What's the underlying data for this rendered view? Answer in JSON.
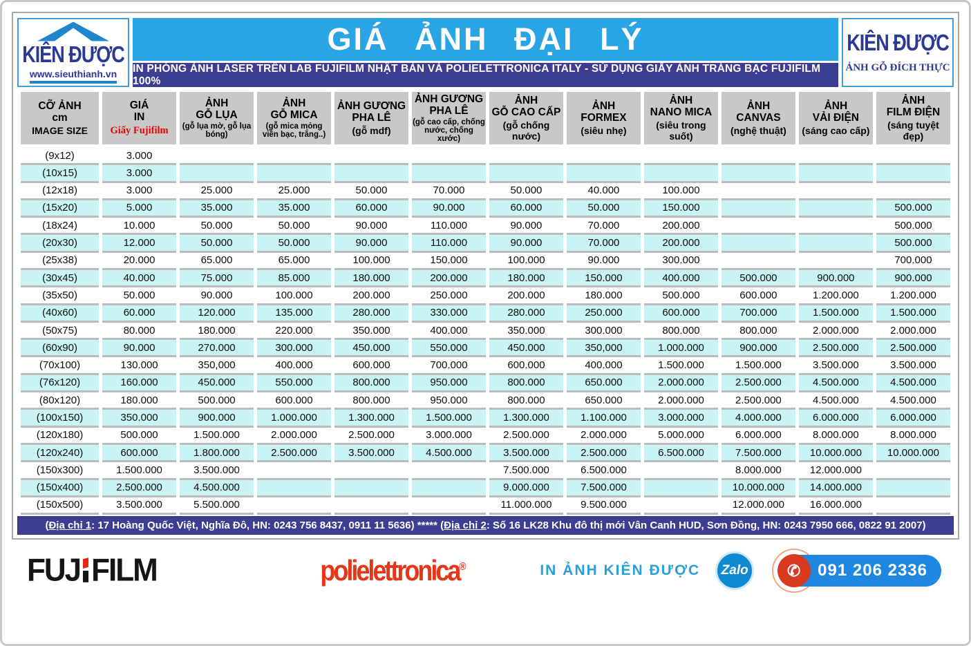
{
  "header": {
    "title": "GIÁ ẢNH ĐẠI LÝ",
    "subtitle": "IN PHÓNG ẢNH LASER TRÊN LAB FUJIFILM NHẬT BẢN VÀ POLIELETTRONICA ITALY - SỬ DỤNG GIẤY ẢNH TRÁNG BẠC FUJIFILM 100%",
    "logo_left": {
      "name": "KIÊN ĐƯỢC",
      "site": "www.sieuthianh.vn"
    },
    "logo_right": {
      "name": "KIÊN ĐƯỢC",
      "tagline": "ẢNH GỖ ĐÍCH THỰC"
    }
  },
  "colors": {
    "title_bar_blue": "#29a5e6",
    "band_indigo": "#3c3e91",
    "stripe_cyan": "#c9f4f6",
    "header_gray": "#c8c8c8",
    "brand_blue": "#2a3a94",
    "accent_red": "#e50300",
    "zalo_blue": "#0f8ad2",
    "phone_pill_blue": "#1d87e2",
    "phone_circle_red": "#d9391f"
  },
  "table": {
    "columns": [
      {
        "l1": "CỠ ẢNH",
        "l2": "cm",
        "l3": "IMAGE SIZE",
        "l3_style": "big"
      },
      {
        "l1": "GIÁ",
        "l2": "IN",
        "l3": "Giấy Fujifilm",
        "l3_style": "red"
      },
      {
        "l1": "ẢNH",
        "l2": "GỖ LỤA",
        "l3": "(gỗ lụa mờ, gỗ lụa bóng)",
        "l3_style": "small"
      },
      {
        "l1": "ẢNH",
        "l2": "GỖ MICA",
        "l3": "(gỗ mica mỏng viền bạc, trắng..)",
        "l3_style": "small"
      },
      {
        "l1": "ẢNH GƯƠNG",
        "l2": "PHA LÊ",
        "l3": "(gỗ mdf)",
        "l3_style": "big"
      },
      {
        "l1": "ẢNH GƯƠNG",
        "l2": "PHA LÊ",
        "l3": "(gỗ cao cấp, chống nước, chống xước)",
        "l3_style": "small"
      },
      {
        "l1": "ẢNH",
        "l2": "GỖ CAO CẤP",
        "l3": "(gỗ chống nước)",
        "l3_style": "big"
      },
      {
        "l1": "ẢNH",
        "l2": "FORMEX",
        "l3": "(siêu nhẹ)",
        "l3_style": "big"
      },
      {
        "l1": "ẢNH",
        "l2": "NANO MICA",
        "l3": "(siêu trong suốt)",
        "l3_style": "big"
      },
      {
        "l1": "ẢNH",
        "l2": "CANVAS",
        "l3": "(nghệ thuật)",
        "l3_style": "big"
      },
      {
        "l1": "ẢNH",
        "l2": "VẢI ĐIỆN",
        "l3": "(sáng cao cấp)",
        "l3_style": "big"
      },
      {
        "l1": "ẢNH",
        "l2": "FILM ĐIỆN",
        "l3": "(sáng tuyệt đẹp)",
        "l3_style": "big"
      }
    ],
    "rows": [
      {
        "size": "(9x12)",
        "values": [
          "3.000",
          "",
          "",
          "",
          "",
          "",
          "",
          "",
          "",
          "",
          ""
        ]
      },
      {
        "size": "(10x15)",
        "values": [
          "3.000",
          "",
          "",
          "",
          "",
          "",
          "",
          "",
          "",
          "",
          ""
        ]
      },
      {
        "size": "(12x18)",
        "values": [
          "3.000",
          "25.000",
          "25.000",
          "50.000",
          "70.000",
          "50.000",
          "40.000",
          "100.000",
          "",
          "",
          ""
        ]
      },
      {
        "size": "(15x20)",
        "values": [
          "5.000",
          "35.000",
          "35.000",
          "60.000",
          "90.000",
          "60.000",
          "50.000",
          "150.000",
          "",
          "",
          "500.000"
        ]
      },
      {
        "size": "(18x24)",
        "values": [
          "10.000",
          "50.000",
          "50.000",
          "90.000",
          "110.000",
          "90.000",
          "70.000",
          "200.000",
          "",
          "",
          "500.000"
        ]
      },
      {
        "size": "(20x30)",
        "values": [
          "12.000",
          "50.000",
          "50.000",
          "90.000",
          "110.000",
          "90.000",
          "70.000",
          "200.000",
          "",
          "",
          "500.000"
        ]
      },
      {
        "size": "(25x38)",
        "values": [
          "20.000",
          "65.000",
          "65.000",
          "100.000",
          "150.000",
          "100.000",
          "90.000",
          "300.000",
          "",
          "",
          "700.000"
        ]
      },
      {
        "size": "(30x45)",
        "values": [
          "40.000",
          "75.000",
          "85.000",
          "180.000",
          "200.000",
          "180.000",
          "150.000",
          "400.000",
          "500.000",
          "900.000",
          "900.000"
        ]
      },
      {
        "size": "(35x50)",
        "values": [
          "50.000",
          "90.000",
          "100.000",
          "200.000",
          "250.000",
          "200.000",
          "180.000",
          "500.000",
          "600.000",
          "1.200.000",
          "1.200.000"
        ]
      },
      {
        "size": "(40x60)",
        "values": [
          "60.000",
          "120.000",
          "135.000",
          "280.000",
          "330.000",
          "280.000",
          "250.000",
          "600.000",
          "700.000",
          "1.500.000",
          "1.500.000"
        ]
      },
      {
        "size": "(50x75)",
        "values": [
          "80.000",
          "180.000",
          "220.000",
          "350.000",
          "400.000",
          "350.000",
          "300.000",
          "800.000",
          "800.000",
          "2.000.000",
          "2.000.000"
        ]
      },
      {
        "size": "(60x90)",
        "values": [
          "90.000",
          "270.000",
          "300.000",
          "450.000",
          "550.000",
          "450.000",
          "350,000",
          "1.000.000",
          "900.000",
          "2.500.000",
          "2.500.000"
        ]
      },
      {
        "size": "(70x100)",
        "values": [
          "130.000",
          "350,000",
          "400.000",
          "600.000",
          "700.000",
          "600.000",
          "400.000",
          "1.500.000",
          "1.500.000",
          "3.500.000",
          "3.500.000"
        ]
      },
      {
        "size": "(76x120)",
        "values": [
          "160.000",
          "450.000",
          "550.000",
          "800.000",
          "950.000",
          "800.000",
          "650.000",
          "2.000.000",
          "2.500.000",
          "4.500.000",
          "4.500.000"
        ]
      },
      {
        "size": "(80x120)",
        "values": [
          "180.000",
          "500.000",
          "600.000",
          "800.000",
          "950.000",
          "800.000",
          "650.000",
          "2.000.000",
          "2.500.000",
          "4.500.000",
          "4.500.000"
        ]
      },
      {
        "size": "(100x150)",
        "values": [
          "350.000",
          "900.000",
          "1.000.000",
          "1.300.000",
          "1.500.000",
          "1.300.000",
          "1.100.000",
          "3.000.000",
          "4.000.000",
          "6.000.000",
          "6.000.000"
        ]
      },
      {
        "size": "(120x180)",
        "values": [
          "500.000",
          "1.500.000",
          "2.000.000",
          "2.500.000",
          "3.000.000",
          "2.500.000",
          "2.000.000",
          "5.000.000",
          "6.000.000",
          "8.000.000",
          "8.000.000"
        ]
      },
      {
        "size": "(120x240)",
        "values": [
          "600.000",
          "1.800.000",
          "2.500.000",
          "3.500.000",
          "4.500.000",
          "3.500.000",
          "2.500.000",
          "6.500.000",
          "7.500.000",
          "10.000.000",
          "10.000.000"
        ]
      },
      {
        "size": "(150x300)",
        "values": [
          "1.500.000",
          "3.500.000",
          "",
          "",
          "",
          "7.500.000",
          "6.500.000",
          "",
          "8.000.000",
          "12.000.000",
          ""
        ]
      },
      {
        "size": "(150x400)",
        "values": [
          "2.500.000",
          "4.500.000",
          "",
          "",
          "",
          "9.000.000",
          "7.500.000",
          "",
          "10.000.000",
          "14.000.000",
          ""
        ]
      },
      {
        "size": "(150x500)",
        "values": [
          "3.500.000",
          "5.500.000",
          "",
          "",
          "",
          "11.000.000",
          "9.500.000",
          "",
          "12.000.000",
          "16.000.000",
          ""
        ]
      }
    ]
  },
  "address": {
    "open1": "(",
    "label1": "Địa chỉ 1",
    "rest1": ": 17 Hoàng Quốc Việt, Nghĩa Đô, HN: 0243 756 8437, 0911 11 5636) ",
    "stars": "*****",
    "open2": " (",
    "label2": "Địa chỉ 2",
    "rest2": ": Số 16 LK28 Khu đô thị mới Vân Canh HUD, Sơn Đồng, HN: 0243 7950 666, 0822 91 2007)"
  },
  "footer": {
    "fuji_left": "FUJ",
    "fuji_right": "FILM",
    "poli": "polielettronica",
    "reg": "®",
    "in_anh": "IN ẢNH KIÊN ĐƯỢC",
    "zalo": "Zalo",
    "phone": "091 206 2336",
    "phone_icon": "✆"
  }
}
